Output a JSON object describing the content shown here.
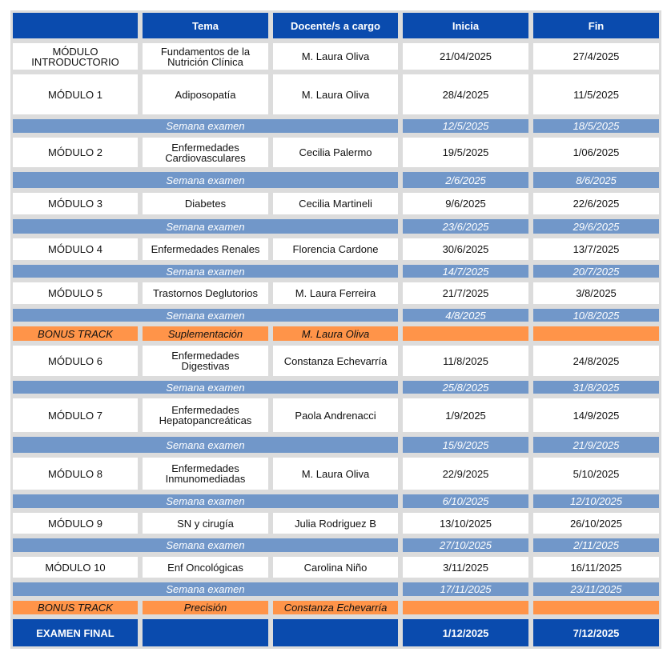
{
  "colors": {
    "header": "#0a4bae",
    "exam_week": "#7197c9",
    "bonus": "#ff9449",
    "grid": "#dcdcdc"
  },
  "header": [
    "",
    "Tema",
    "Docente/s a cargo",
    "Inicia",
    "Fin"
  ],
  "rows": [
    {
      "type": "module",
      "cells": [
        "MÓDULO\nINTRODUCTORIO",
        "Fundamentos de la\nNutrición Clínica",
        "M. Laura Oliva",
        "21/04/2025",
        "27/4/2025"
      ]
    },
    {
      "type": "module",
      "cells": [
        "MÓDULO 1",
        "Adiposopatía",
        "M. Laura Oliva",
        "28/4/2025",
        "11/5/2025"
      ]
    },
    {
      "type": "exam",
      "cells": [
        "Semana examen",
        "12/5/2025",
        "18/5/2025"
      ]
    },
    {
      "type": "module",
      "cells": [
        "MÓDULO 2",
        "Enfermedades\nCardiovasculares",
        "Cecilia Palermo",
        "19/5/2025",
        "1/06/2025"
      ]
    },
    {
      "type": "exam",
      "cells": [
        "Semana examen",
        "2/6/2025",
        "8/6/2025"
      ]
    },
    {
      "type": "module",
      "cells": [
        "MÓDULO 3",
        "Diabetes",
        "Cecilia Martineli",
        "9/6/2025",
        "22/6/2025"
      ]
    },
    {
      "type": "exam",
      "cells": [
        "Semana examen",
        "23/6/2025",
        "29/6/2025"
      ]
    },
    {
      "type": "module",
      "cells": [
        "MÓDULO 4",
        "Enfermedades Renales",
        "Florencia Cardone",
        "30/6/2025",
        "13/7/2025"
      ]
    },
    {
      "type": "exam",
      "cells": [
        "Semana examen",
        "14/7/2025",
        "20/7/2025"
      ]
    },
    {
      "type": "module",
      "cells": [
        "MÓDULO 5",
        "Trastornos Deglutorios",
        "M. Laura Ferreira",
        "21/7/2025",
        "3/8/2025"
      ]
    },
    {
      "type": "exam",
      "cells": [
        "Semana examen",
        "4/8/2025",
        "10/8/2025"
      ]
    },
    {
      "type": "bonus",
      "cells": [
        "BONUS TRACK",
        "Suplementación",
        "M. Laura Oliva",
        "",
        ""
      ]
    },
    {
      "type": "module",
      "cells": [
        "MÓDULO 6",
        "Enfermedades\nDigestivas",
        "Constanza Echevarría",
        "11/8/2025",
        "24/8/2025"
      ]
    },
    {
      "type": "exam",
      "cells": [
        "Semana examen",
        "25/8/2025",
        "31/8/2025"
      ]
    },
    {
      "type": "module",
      "cells": [
        "MÓDULO 7",
        "Enfermedades\nHepatopancreáticas",
        "Paola Andrenacci",
        "1/9/2025",
        "14/9/2025"
      ]
    },
    {
      "type": "exam",
      "cells": [
        "Semana examen",
        "15/9/2025",
        "21/9/2025"
      ]
    },
    {
      "type": "module",
      "cells": [
        "MÓDULO 8",
        "Enfermedades\nInmunomediadas",
        "M. Laura Oliva",
        "22/9/2025",
        "5/10/2025"
      ]
    },
    {
      "type": "exam",
      "cells": [
        "Semana examen",
        "6/10/2025",
        "12/10/2025"
      ]
    },
    {
      "type": "module",
      "cells": [
        "MÓDULO 9",
        "SN y cirugía",
        "Julia Rodriguez B",
        "13/10/2025",
        "26/10/2025"
      ]
    },
    {
      "type": "exam",
      "cells": [
        "Semana examen",
        "27/10/2025",
        "2/11/2025"
      ]
    },
    {
      "type": "module",
      "cells": [
        "MÓDULO 10",
        "Enf Oncológicas",
        "Carolina Niño",
        "3/11/2025",
        "16/11/2025"
      ]
    },
    {
      "type": "exam",
      "cells": [
        "Semana examen",
        "17/11/2025",
        "23/11/2025"
      ]
    },
    {
      "type": "bonus",
      "cells": [
        "BONUS TRACK",
        "Precisión",
        "Constanza Echevarría",
        "",
        ""
      ]
    },
    {
      "type": "final",
      "cells": [
        "EXAMEN FINAL",
        "",
        "",
        "1/12/2025",
        "7/12/2025"
      ]
    }
  ]
}
